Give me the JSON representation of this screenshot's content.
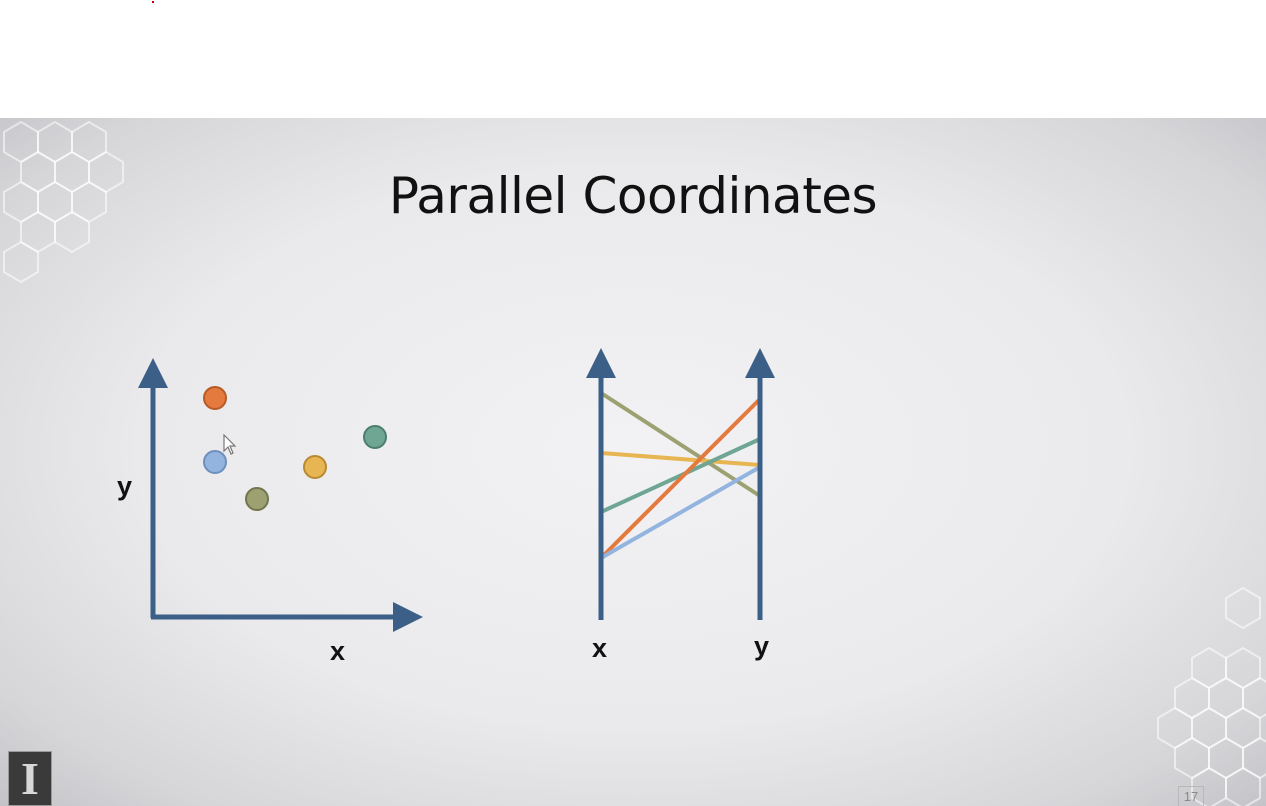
{
  "slide": {
    "title": "Parallel Coordinates",
    "page_number": "17",
    "logo_letter": "I"
  },
  "scatter_plot": {
    "x_axis_label": "x",
    "y_axis_label": "y",
    "points": [
      {
        "name": "orange",
        "color": "#E47A3E"
      },
      {
        "name": "blue",
        "color": "#93B4DE"
      },
      {
        "name": "olive",
        "color": "#9DA171"
      },
      {
        "name": "yellow",
        "color": "#E8B553"
      },
      {
        "name": "teal",
        "color": "#6FA593"
      }
    ]
  },
  "parallel_plot": {
    "axes": [
      "x",
      "y"
    ],
    "lines": [
      {
        "name": "olive",
        "color": "#9DA171"
      },
      {
        "name": "yellow",
        "color": "#E8B553"
      },
      {
        "name": "teal",
        "color": "#6FA593"
      },
      {
        "name": "orange",
        "color": "#E47A3E"
      },
      {
        "name": "blue",
        "color": "#93B4DE"
      }
    ]
  },
  "colors": {
    "axis": "#3C5F87",
    "title_text": "#111111"
  }
}
